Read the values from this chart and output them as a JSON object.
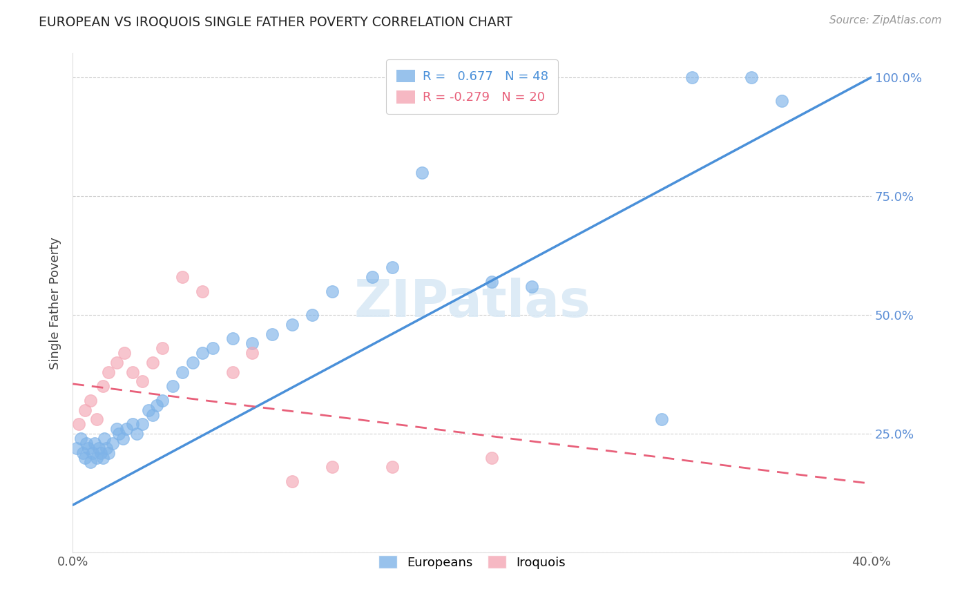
{
  "title": "EUROPEAN VS IROQUOIS SINGLE FATHER POVERTY CORRELATION CHART",
  "source": "Source: ZipAtlas.com",
  "ylabel": "Single Father Poverty",
  "xlim": [
    0.0,
    0.4
  ],
  "ylim": [
    0.0,
    1.05
  ],
  "xticks": [
    0.0,
    0.1,
    0.2,
    0.3,
    0.4
  ],
  "xtick_labels": [
    "0.0%",
    "",
    "",
    "",
    "40.0%"
  ],
  "yticks": [
    0.0,
    0.25,
    0.5,
    0.75,
    1.0
  ],
  "european_r": 0.677,
  "european_n": 48,
  "iroquois_r": -0.279,
  "iroquois_n": 20,
  "european_color": "#7EB3E8",
  "iroquois_color": "#F4A7B5",
  "trendline_european_color": "#4A90D9",
  "trendline_iroquois_color": "#E8607A",
  "watermark": "ZIPatlas",
  "eu_trend_x0": 0.0,
  "eu_trend_y0": 0.1,
  "eu_trend_x1": 0.4,
  "eu_trend_y1": 1.0,
  "ir_trend_x0": 0.0,
  "ir_trend_y0": 0.355,
  "ir_trend_x1": 0.4,
  "ir_trend_y1": 0.145,
  "european_x": [
    0.002,
    0.004,
    0.005,
    0.006,
    0.007,
    0.008,
    0.009,
    0.01,
    0.011,
    0.012,
    0.013,
    0.014,
    0.015,
    0.016,
    0.017,
    0.018,
    0.02,
    0.022,
    0.023,
    0.025,
    0.027,
    0.03,
    0.032,
    0.035,
    0.038,
    0.04,
    0.042,
    0.045,
    0.05,
    0.055,
    0.06,
    0.065,
    0.07,
    0.08,
    0.09,
    0.1,
    0.11,
    0.12,
    0.13,
    0.15,
    0.16,
    0.175,
    0.21,
    0.23,
    0.295,
    0.31,
    0.34,
    0.355
  ],
  "european_y": [
    0.22,
    0.24,
    0.21,
    0.2,
    0.23,
    0.22,
    0.19,
    0.21,
    0.23,
    0.2,
    0.22,
    0.21,
    0.2,
    0.24,
    0.22,
    0.21,
    0.23,
    0.26,
    0.25,
    0.24,
    0.26,
    0.27,
    0.25,
    0.27,
    0.3,
    0.29,
    0.31,
    0.32,
    0.35,
    0.38,
    0.4,
    0.42,
    0.43,
    0.45,
    0.44,
    0.46,
    0.48,
    0.5,
    0.55,
    0.58,
    0.6,
    0.8,
    0.57,
    0.56,
    0.28,
    1.0,
    1.0,
    0.95
  ],
  "iroquois_x": [
    0.003,
    0.006,
    0.009,
    0.012,
    0.015,
    0.018,
    0.022,
    0.026,
    0.03,
    0.035,
    0.04,
    0.045,
    0.055,
    0.065,
    0.08,
    0.09,
    0.11,
    0.13,
    0.16,
    0.21
  ],
  "iroquois_y": [
    0.27,
    0.3,
    0.32,
    0.28,
    0.35,
    0.38,
    0.4,
    0.42,
    0.38,
    0.36,
    0.4,
    0.43,
    0.58,
    0.55,
    0.38,
    0.42,
    0.15,
    0.18,
    0.18,
    0.2
  ]
}
